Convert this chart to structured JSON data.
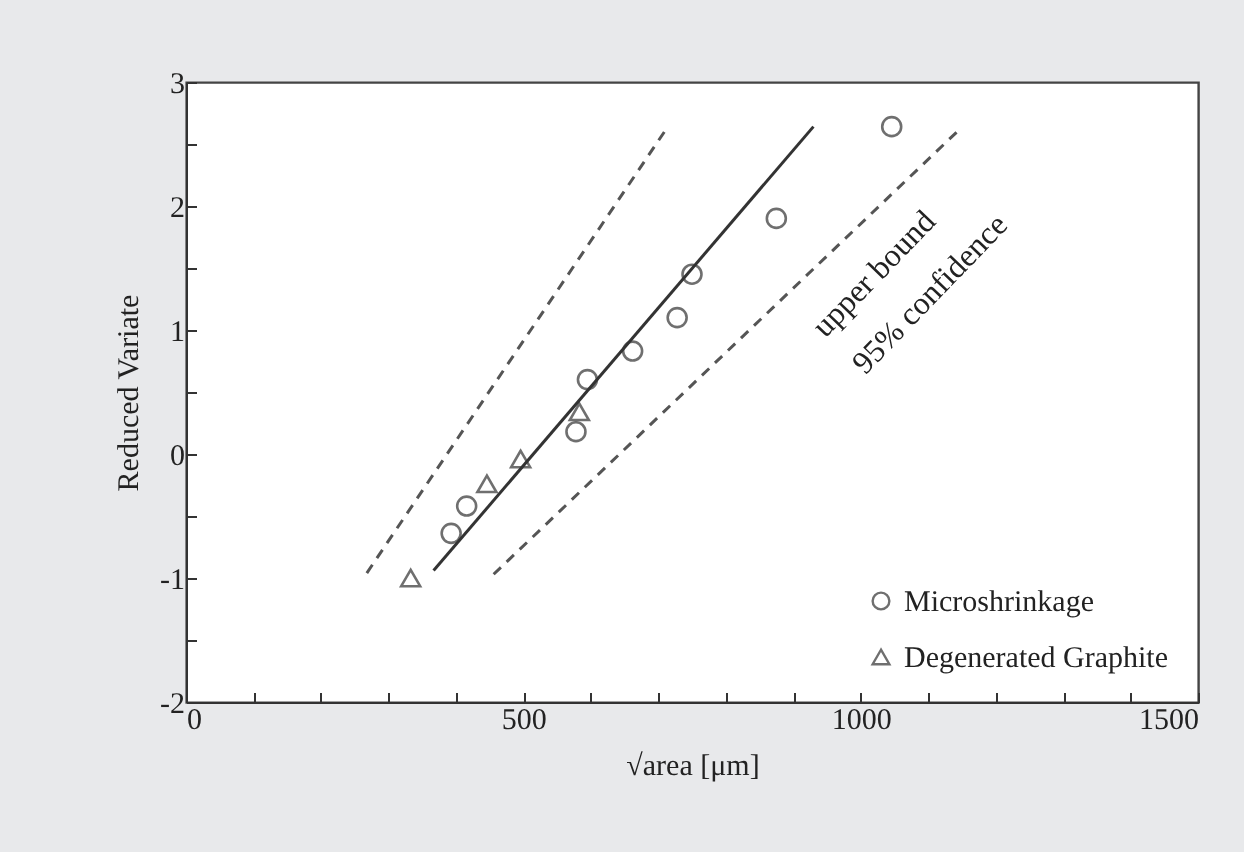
{
  "chart_data": {
    "type": "scatter",
    "xlabel": "√area [μm]",
    "ylabel": "Reduced Variate",
    "xlim": [
      0,
      1500
    ],
    "ylim": [
      -2,
      3
    ],
    "xticks": [
      0,
      {
        "value": 100,
        "label": null
      },
      {
        "value": 200,
        "label": null
      },
      {
        "value": 300,
        "label": null
      },
      {
        "value": 400,
        "label": null
      },
      500,
      {
        "value": 600,
        "label": null
      },
      {
        "value": 700,
        "label": null
      },
      {
        "value": 800,
        "label": null
      },
      {
        "value": 900,
        "label": null
      },
      1000,
      {
        "value": 1100,
        "label": null
      },
      {
        "value": 1200,
        "label": null
      },
      {
        "value": 1300,
        "label": null
      },
      {
        "value": 1400,
        "label": null
      },
      1500
    ],
    "yticks": [
      -2,
      {
        "value": -1.5,
        "label": null
      },
      -1,
      {
        "value": -0.5,
        "label": null
      },
      0,
      {
        "value": 0.5,
        "label": null
      },
      1,
      {
        "value": 1.5,
        "label": null
      },
      2,
      {
        "value": 2.5,
        "label": null
      },
      3
    ],
    "grid": false,
    "legend": "bottom right",
    "series": [
      {
        "name": "Microshrinkage",
        "marker": "circle",
        "color": "#333333",
        "x": [
          393,
          416,
          578,
          595,
          662,
          728,
          750,
          875,
          1046
        ],
        "values": [
          -0.64,
          -0.42,
          0.18,
          0.6,
          0.83,
          1.1,
          1.45,
          1.9,
          2.64
        ]
      },
      {
        "name": "Degenerated Graphite",
        "marker": "triangle",
        "color": "#333333",
        "x": [
          333,
          446,
          496,
          583
        ],
        "values": [
          -1.0,
          -0.24,
          -0.04,
          0.34
        ]
      },
      {
        "type": "line",
        "line_style": "solid",
        "color": "#333333",
        "x": [
          367,
          930
        ],
        "values": [
          -0.94,
          2.64
        ]
      },
      {
        "type": "line",
        "line_style": "dashed",
        "color": "#555555",
        "x": [
          268,
          713
        ],
        "values": [
          -0.96,
          2.63
        ]
      },
      {
        "type": "line",
        "line_style": "dashed",
        "color": "#555555",
        "x": [
          456,
          1147
        ],
        "values": [
          -0.97,
          2.62
        ]
      }
    ],
    "annotations": [
      "upper bound",
      "95% confidence"
    ]
  }
}
